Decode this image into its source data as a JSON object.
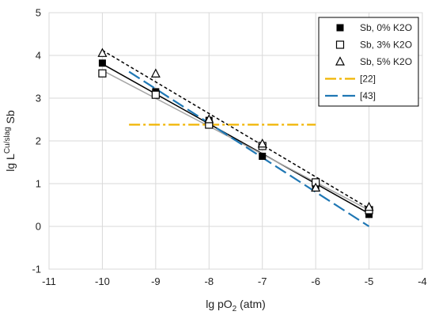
{
  "chart_data": {
    "type": "scatter",
    "xlabel": {
      "main": "lg pO",
      "sub": "2",
      "tail": " (atm)"
    },
    "ylabel": {
      "main": "lg L",
      "sup": "Cu/slag",
      "tail": " Sb"
    },
    "xlim": [
      -11,
      -4
    ],
    "ylim": [
      -1,
      5
    ],
    "xticks": [
      "-11",
      "-10",
      "-9",
      "-8",
      "-7",
      "-6",
      "-5",
      "-4"
    ],
    "yticks": [
      "-1",
      "0",
      "1",
      "2",
      "3",
      "4",
      "5"
    ],
    "grid": true,
    "legend_position": "top-right",
    "series": [
      {
        "name": "Sb, 0% K2O",
        "marker": "filled-square",
        "color": "#000000",
        "x": [
          -10,
          -9,
          -8,
          -7,
          -6,
          -5
        ],
        "y": [
          3.82,
          3.15,
          2.48,
          1.64,
          0.93,
          0.28
        ],
        "trend": {
          "x": [
            -10,
            -5
          ],
          "y": [
            3.8,
            0.3
          ],
          "style": "solid",
          "color": "#000000"
        }
      },
      {
        "name": "Sb, 3% K2O",
        "marker": "open-square",
        "color": "#000000",
        "x": [
          -10,
          -9,
          -8,
          -7,
          -6,
          -5
        ],
        "y": [
          3.58,
          3.08,
          2.38,
          1.88,
          1.03,
          0.38
        ],
        "trend": {
          "x": [
            -10,
            -5
          ],
          "y": [
            3.65,
            0.38
          ],
          "style": "solid",
          "color": "#a6a6a6"
        }
      },
      {
        "name": "Sb, 5% K2O",
        "marker": "open-triangle",
        "color": "#000000",
        "x": [
          -10,
          -9,
          -8,
          -7,
          -6,
          -5
        ],
        "y": [
          4.05,
          3.57,
          2.5,
          1.93,
          0.9,
          0.45
        ],
        "trend": {
          "x": [
            -10,
            -5
          ],
          "y": [
            4.12,
            0.42
          ],
          "style": "dotted",
          "color": "#000000"
        }
      },
      {
        "name": "[22]",
        "marker": "none",
        "color": "#f0b400",
        "x": [
          -9.5,
          -6
        ],
        "y": [
          2.38,
          2.38
        ],
        "style": "dashdot"
      },
      {
        "name": "[43]",
        "marker": "none",
        "color": "#1f77b4",
        "x": [
          -9.5,
          -5
        ],
        "y": [
          3.62,
          0.0
        ],
        "style": "longdash"
      }
    ]
  }
}
